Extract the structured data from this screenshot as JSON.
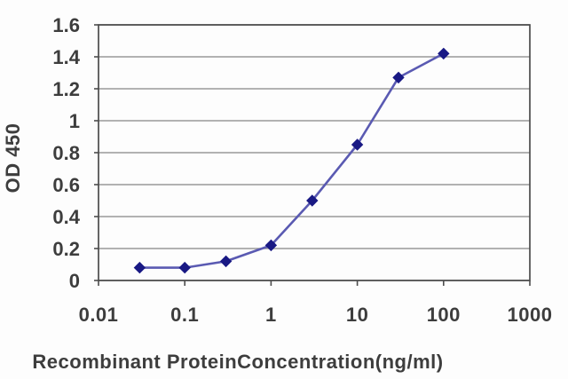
{
  "chart_data": {
    "type": "line",
    "title": "",
    "xlabel": "Recombinant ProteinConcentration(ng/ml)",
    "ylabel": "OD 450",
    "x_scale": "log",
    "xlim": [
      0.01,
      1000
    ],
    "ylim": [
      0,
      1.6
    ],
    "x_ticks": [
      0.01,
      0.1,
      1,
      10,
      100,
      1000
    ],
    "x_tick_labels": [
      "0.01",
      "0.1",
      "1",
      "10",
      "100",
      "1000"
    ],
    "y_ticks": [
      0,
      0.2,
      0.4,
      0.6,
      0.8,
      1,
      1.2,
      1.4,
      1.6
    ],
    "y_tick_labels": [
      "0",
      "0.2",
      "0.4",
      "0.6",
      "0.8",
      "1",
      "1.2",
      "1.4",
      "1.6"
    ],
    "grid": "horizontal",
    "legend": "none",
    "series": [
      {
        "name": "OD 450",
        "marker": "diamond",
        "x": [
          0.03,
          0.1,
          0.3,
          1,
          3,
          10,
          30,
          100
        ],
        "y": [
          0.08,
          0.08,
          0.12,
          0.22,
          0.5,
          0.85,
          1.27,
          1.42
        ]
      }
    ],
    "colors": {
      "line": "#5a5ab2",
      "marker": "#191984",
      "grid": "#9a9a9a",
      "axis": "#4c4c4c",
      "text": "#3d3d3d",
      "background": "#fdfdfd"
    }
  }
}
